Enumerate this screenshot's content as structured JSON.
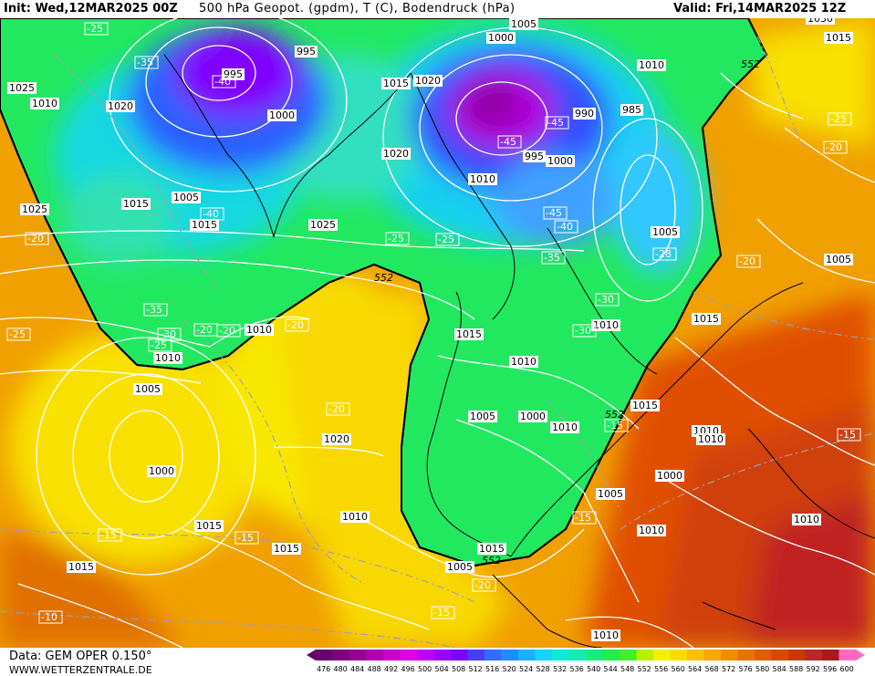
{
  "header": {
    "init": "Init: Wed,12MAR2025 00Z",
    "parameter": "500 hPa Geopot. (gpdm), T (C), Bodendruck (hPa)",
    "valid": "Valid: Fri,14MAR2025 12Z"
  },
  "footer": {
    "data_source": "Data: GEM OPER 0.150°",
    "website": "WWW.WETTERZENTRALE.DE"
  },
  "colors": {
    "trough_deep": "#8000ff",
    "trough": "#2040ff",
    "cyan": "#20d8e8",
    "green": "#20e860",
    "yellow": "#f8e800",
    "orange": "#f0a000",
    "red_orange": "#e05000",
    "dark_red": "#c02020"
  },
  "scale": {
    "labels": [
      "476",
      "480",
      "484",
      "488",
      "492",
      "496",
      "500",
      "504",
      "508",
      "512",
      "516",
      "520",
      "524",
      "528",
      "532",
      "536",
      "540",
      "544",
      "548",
      "552",
      "556",
      "560",
      "564",
      "568",
      "572",
      "576",
      "580",
      "584",
      "588",
      "592",
      "596",
      "600"
    ],
    "colors": [
      "#6a006a",
      "#7f007f",
      "#950095",
      "#b000b0",
      "#cc00cc",
      "#e000e8",
      "#c000ff",
      "#9c00ff",
      "#7a00ff",
      "#4a3cff",
      "#2f6cff",
      "#1f8cff",
      "#18b0ff",
      "#12d4ff",
      "#12e8d8",
      "#14ecb0",
      "#18ec80",
      "#22ec50",
      "#40ee2a",
      "#b8f000",
      "#f0f000",
      "#f8dc00",
      "#f8c000",
      "#f8a600",
      "#f08c00",
      "#e87400",
      "#e05c00",
      "#d84800",
      "#c83800",
      "#b82828",
      "#a81a1a",
      "#ff69c0"
    ]
  },
  "map": {
    "contour_552": "552",
    "pressure_labels": [
      "995",
      "995",
      "1000",
      "1005",
      "1010",
      "1015",
      "1020",
      "1025",
      "1030",
      "1005",
      "1000",
      "995",
      "990",
      "985",
      "1005",
      "1010",
      "1015",
      "1020",
      "1025",
      "1000",
      "1005",
      "1010",
      "1015",
      "1020",
      "1005",
      "1000",
      "1010",
      "1015",
      "1010",
      "1005",
      "1000",
      "1010",
      "1015",
      "1005",
      "1010",
      "1015",
      "1010",
      "1010",
      "1015",
      "1010",
      "1015",
      "1005",
      "1000",
      "1010",
      "1015",
      "1010",
      "1020",
      "1025",
      "1010",
      "1015",
      "1010",
      "1015"
    ],
    "temperature_labels": [
      "-25",
      "-35",
      "-40",
      "-40",
      "-45",
      "-45",
      "-45",
      "-40",
      "-35",
      "-30",
      "-30",
      "-28",
      "-25",
      "-25",
      "-35",
      "-30",
      "-25",
      "-20",
      "-20",
      "-20",
      "-25",
      "-20",
      "-20",
      "-15",
      "-15",
      "-15",
      "-10",
      "-20",
      "-15",
      "-20",
      "-25",
      "-20",
      "-15",
      "-15"
    ]
  }
}
